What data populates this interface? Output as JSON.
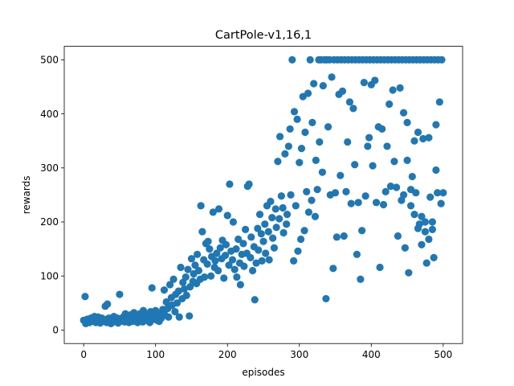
{
  "chart_data": {
    "type": "scatter",
    "title": "CartPole-v1,16,1",
    "xlabel": "episodes",
    "ylabel": "rewards",
    "xlim": [
      -27,
      527
    ],
    "ylim": [
      -25,
      525
    ],
    "xticks": [
      0,
      100,
      200,
      300,
      400,
      500
    ],
    "yticks": [
      0,
      100,
      200,
      300,
      400,
      500
    ],
    "grid": false,
    "marker_color": "#1f77b4",
    "series": [
      {
        "points": [
          [
            0,
            18
          ],
          [
            2,
            62
          ],
          [
            3,
            12
          ],
          [
            5,
            20
          ],
          [
            7,
            15
          ],
          [
            8,
            14
          ],
          [
            10,
            22
          ],
          [
            12,
            17
          ],
          [
            13,
            16
          ],
          [
            15,
            25
          ],
          [
            17,
            14
          ],
          [
            18,
            20
          ],
          [
            20,
            24
          ],
          [
            22,
            18
          ],
          [
            23,
            13
          ],
          [
            25,
            22
          ],
          [
            27,
            16
          ],
          [
            28,
            20
          ],
          [
            30,
            44
          ],
          [
            32,
            14
          ],
          [
            33,
            48
          ],
          [
            35,
            22
          ],
          [
            37,
            17
          ],
          [
            38,
            12
          ],
          [
            40,
            20
          ],
          [
            42,
            25
          ],
          [
            43,
            18
          ],
          [
            45,
            15
          ],
          [
            47,
            22
          ],
          [
            48,
            13
          ],
          [
            50,
            66
          ],
          [
            52,
            20
          ],
          [
            53,
            17
          ],
          [
            55,
            24
          ],
          [
            57,
            15
          ],
          [
            58,
            30
          ],
          [
            60,
            18
          ],
          [
            62,
            22
          ],
          [
            63,
            14
          ],
          [
            65,
            28
          ],
          [
            67,
            20
          ],
          [
            68,
            16
          ],
          [
            70,
            32
          ],
          [
            72,
            25
          ],
          [
            73,
            18
          ],
          [
            75,
            14
          ],
          [
            77,
            22
          ],
          [
            78,
            30
          ],
          [
            80,
            20
          ],
          [
            82,
            15
          ],
          [
            83,
            36
          ],
          [
            85,
            24
          ],
          [
            87,
            18
          ],
          [
            88,
            28
          ],
          [
            90,
            22
          ],
          [
            92,
            14
          ],
          [
            93,
            34
          ],
          [
            95,
            78
          ],
          [
            97,
            20
          ],
          [
            98,
            26
          ],
          [
            100,
            36
          ],
          [
            102,
            18
          ],
          [
            103,
            24
          ],
          [
            105,
            16
          ],
          [
            107,
            30
          ],
          [
            108,
            22
          ],
          [
            110,
            38
          ],
          [
            112,
            74
          ],
          [
            113,
            28
          ],
          [
            115,
            52
          ],
          [
            117,
            40
          ],
          [
            118,
            24
          ],
          [
            120,
            84
          ],
          [
            122,
            60
          ],
          [
            123,
            46
          ],
          [
            125,
            94
          ],
          [
            127,
            34
          ],
          [
            128,
            66
          ],
          [
            130,
            50
          ],
          [
            132,
            72
          ],
          [
            133,
            24
          ],
          [
            135,
            116
          ],
          [
            137,
            58
          ],
          [
            138,
            88
          ],
          [
            140,
            76
          ],
          [
            142,
            98
          ],
          [
            143,
            64
          ],
          [
            145,
            112
          ],
          [
            147,
            26
          ],
          [
            148,
            80
          ],
          [
            150,
            132
          ],
          [
            152,
            90
          ],
          [
            153,
            104
          ],
          [
            155,
            120
          ],
          [
            157,
            86
          ],
          [
            158,
            140
          ],
          [
            160,
            110
          ],
          [
            162,
            94
          ],
          [
            163,
            230
          ],
          [
            165,
            182
          ],
          [
            167,
            130
          ],
          [
            168,
            98
          ],
          [
            170,
            160
          ],
          [
            172,
            122
          ],
          [
            173,
            164
          ],
          [
            175,
            150
          ],
          [
            177,
            100
          ],
          [
            178,
            136
          ],
          [
            180,
            218
          ],
          [
            182,
            116
          ],
          [
            183,
            128
          ],
          [
            185,
            142
          ],
          [
            187,
            110
          ],
          [
            188,
            224
          ],
          [
            190,
            152
          ],
          [
            192,
            132
          ],
          [
            193,
            166
          ],
          [
            195,
            96
          ],
          [
            197,
            138
          ],
          [
            198,
            158
          ],
          [
            200,
            212
          ],
          [
            202,
            120
          ],
          [
            203,
            270
          ],
          [
            205,
            146
          ],
          [
            207,
            130
          ],
          [
            208,
            200
          ],
          [
            210,
            112
          ],
          [
            212,
            150
          ],
          [
            213,
            98
          ],
          [
            215,
            168
          ],
          [
            217,
            124
          ],
          [
            218,
            84
          ],
          [
            220,
            140
          ],
          [
            222,
            160
          ],
          [
            223,
            118
          ],
          [
            225,
            186
          ],
          [
            227,
            142
          ],
          [
            228,
            266
          ],
          [
            230,
            270
          ],
          [
            232,
            134
          ],
          [
            233,
            172
          ],
          [
            235,
            110
          ],
          [
            237,
            154
          ],
          [
            238,
            56
          ],
          [
            240,
            124
          ],
          [
            242,
            188
          ],
          [
            243,
            148
          ],
          [
            245,
            214
          ],
          [
            247,
            178
          ],
          [
            248,
            128
          ],
          [
            250,
            164
          ],
          [
            252,
            196
          ],
          [
            253,
            142
          ],
          [
            255,
            230
          ],
          [
            257,
            182
          ],
          [
            258,
            130
          ],
          [
            260,
            238
          ],
          [
            262,
            208
          ],
          [
            263,
            170
          ],
          [
            265,
            152
          ],
          [
            267,
            224
          ],
          [
            268,
            190
          ],
          [
            270,
            312
          ],
          [
            272,
            206
          ],
          [
            273,
            358
          ],
          [
            275,
            248
          ],
          [
            277,
            226
          ],
          [
            278,
            180
          ],
          [
            280,
            326
          ],
          [
            282,
            196
          ],
          [
            283,
            214
          ],
          [
            285,
            340
          ],
          [
            287,
            372
          ],
          [
            288,
            250
          ],
          [
            290,
            500
          ],
          [
            292,
            128
          ],
          [
            293,
            404
          ],
          [
            295,
            230
          ],
          [
            297,
            390
          ],
          [
            298,
            146
          ],
          [
            300,
            310
          ],
          [
            302,
            168
          ],
          [
            303,
            336
          ],
          [
            305,
            432
          ],
          [
            307,
            184
          ],
          [
            308,
            366
          ],
          [
            310,
            256
          ],
          [
            312,
            438
          ],
          [
            313,
            218
          ],
          [
            315,
            500
          ],
          [
            317,
            240
          ],
          [
            318,
            384
          ],
          [
            320,
            456
          ],
          [
            322,
            210
          ],
          [
            323,
            314
          ],
          [
            325,
            260
          ],
          [
            327,
            500
          ],
          [
            328,
            348
          ],
          [
            330,
            500
          ],
          [
            332,
            292
          ],
          [
            333,
            452
          ],
          [
            335,
            500
          ],
          [
            337,
            58
          ],
          [
            338,
            500
          ],
          [
            340,
            376
          ],
          [
            342,
            500
          ],
          [
            343,
            250
          ],
          [
            345,
            468
          ],
          [
            347,
            114
          ],
          [
            348,
            500
          ],
          [
            350,
            254
          ],
          [
            352,
            172
          ],
          [
            353,
            500
          ],
          [
            355,
            436
          ],
          [
            357,
            286
          ],
          [
            358,
            500
          ],
          [
            360,
            442
          ],
          [
            362,
            174
          ],
          [
            363,
            500
          ],
          [
            365,
            256
          ],
          [
            367,
            348
          ],
          [
            368,
            500
          ],
          [
            370,
            422
          ],
          [
            372,
            234
          ],
          [
            373,
            500
          ],
          [
            375,
            410
          ],
          [
            377,
            306
          ],
          [
            378,
            500
          ],
          [
            380,
            140
          ],
          [
            382,
            236
          ],
          [
            383,
            500
          ],
          [
            385,
            94
          ],
          [
            387,
            184
          ],
          [
            388,
            500
          ],
          [
            390,
            458
          ],
          [
            392,
            248
          ],
          [
            393,
            500
          ],
          [
            395,
            340
          ],
          [
            397,
            356
          ],
          [
            398,
            500
          ],
          [
            400,
            454
          ],
          [
            402,
            304
          ],
          [
            403,
            500
          ],
          [
            405,
            462
          ],
          [
            407,
            236
          ],
          [
            408,
            500
          ],
          [
            410,
            376
          ],
          [
            412,
            116
          ],
          [
            413,
            500
          ],
          [
            415,
            372
          ],
          [
            417,
            232
          ],
          [
            418,
            500
          ],
          [
            420,
            256
          ],
          [
            422,
            340
          ],
          [
            423,
            500
          ],
          [
            425,
            418
          ],
          [
            427,
            266
          ],
          [
            428,
            500
          ],
          [
            430,
            444
          ],
          [
            432,
            312
          ],
          [
            433,
            500
          ],
          [
            435,
            264
          ],
          [
            437,
            174
          ],
          [
            438,
            500
          ],
          [
            440,
            448
          ],
          [
            442,
            240
          ],
          [
            443,
            500
          ],
          [
            445,
            402
          ],
          [
            447,
            152
          ],
          [
            448,
            500
          ],
          [
            450,
            384
          ],
          [
            452,
            106
          ],
          [
            453,
            500
          ],
          [
            455,
            230
          ],
          [
            457,
            284
          ],
          [
            458,
            500
          ],
          [
            460,
            350
          ],
          [
            462,
            254
          ],
          [
            463,
            500
          ],
          [
            465,
            366
          ],
          [
            467,
            196
          ],
          [
            468,
            500
          ],
          [
            470,
            158
          ],
          [
            472,
            354
          ],
          [
            473,
            500
          ],
          [
            475,
            200
          ],
          [
            477,
            124
          ],
          [
            478,
            500
          ],
          [
            480,
            356
          ],
          [
            482,
            246
          ],
          [
            483,
            500
          ],
          [
            485,
            186
          ],
          [
            487,
            134
          ],
          [
            488,
            500
          ],
          [
            490,
            380
          ],
          [
            492,
            254
          ],
          [
            493,
            500
          ],
          [
            495,
            422
          ],
          [
            497,
            234
          ],
          [
            498,
            500
          ],
          [
            500,
            254
          ],
          [
            455,
            260
          ],
          [
            460,
            214
          ],
          [
            470,
            210
          ],
          [
            485,
            200
          ],
          [
            490,
            296
          ],
          [
            480,
            168
          ],
          [
            475,
            182
          ],
          [
            465,
            188
          ],
          [
            450,
            314
          ],
          [
            445,
            250
          ]
        ]
      }
    ]
  }
}
